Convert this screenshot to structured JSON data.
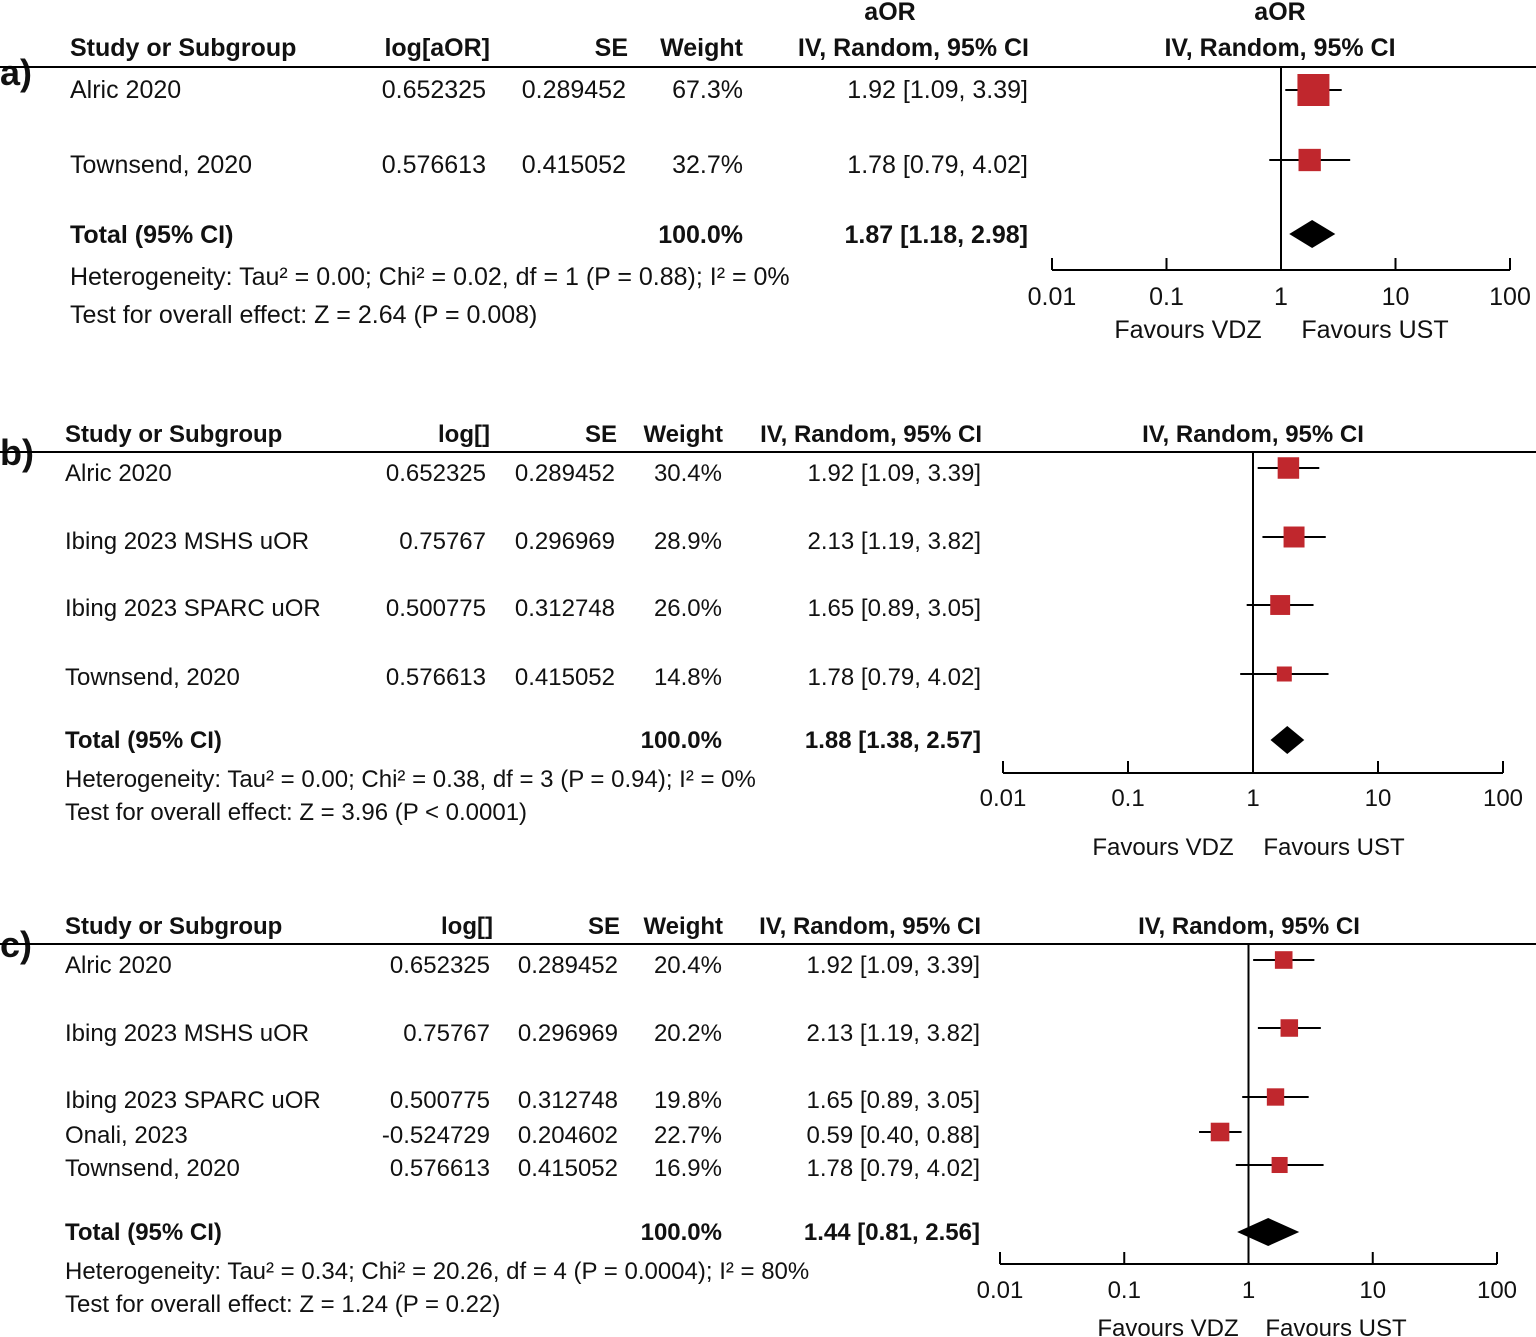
{
  "colors": {
    "marker": "#c0272d",
    "diamond": "#000000",
    "line": "#000000"
  },
  "panels": [
    {
      "label": "a)",
      "headers": {
        "study": "Study or Subgroup",
        "log": "log[aOR]",
        "se": "SE",
        "weight": "Weight",
        "ci_top": "aOR",
        "ci": "IV, Random, 95% CI",
        "plot_top": "aOR",
        "plot": "IV, Random, 95% CI"
      },
      "rows": [
        {
          "study": "Alric 2020",
          "log": "0.652325",
          "se": "0.289452",
          "weight": "67.3%",
          "ci": "1.92 [1.09, 3.39]"
        },
        {
          "study": "Townsend, 2020",
          "log": "0.576613",
          "se": "0.415052",
          "weight": "32.7%",
          "ci": "1.78 [0.79, 4.02]"
        }
      ],
      "total": {
        "label": "Total (95% CI)",
        "weight": "100.0%",
        "ci": "1.87 [1.18, 2.98]"
      },
      "heterogeneity": "Heterogeneity: Tau² = 0.00; Chi² = 0.02, df = 1 (P = 0.88); I² = 0%",
      "overall": "Test for overall effect: Z = 2.64 (P = 0.008)",
      "axis": {
        "ticks": [
          "0.01",
          "0.1",
          "1",
          "10",
          "100"
        ],
        "favours_left": "Favours VDZ",
        "favours_right": "Favours UST"
      }
    },
    {
      "label": "b)",
      "headers": {
        "study": "Study or Subgroup",
        "log": "log[]",
        "se": "SE",
        "weight": "Weight",
        "ci": "IV, Random, 95% CI",
        "plot": "IV, Random, 95% CI"
      },
      "rows": [
        {
          "study": "Alric 2020",
          "log": "0.652325",
          "se": "0.289452",
          "weight": "30.4%",
          "ci": "1.92 [1.09, 3.39]"
        },
        {
          "study": "Ibing 2023 MSHS uOR",
          "log": "0.75767",
          "se": "0.296969",
          "weight": "28.9%",
          "ci": "2.13 [1.19, 3.82]"
        },
        {
          "study": "Ibing 2023 SPARC uOR",
          "log": "0.500775",
          "se": "0.312748",
          "weight": "26.0%",
          "ci": "1.65 [0.89, 3.05]"
        },
        {
          "study": "Townsend, 2020",
          "log": "0.576613",
          "se": "0.415052",
          "weight": "14.8%",
          "ci": "1.78 [0.79, 4.02]"
        }
      ],
      "total": {
        "label": "Total (95% CI)",
        "weight": "100.0%",
        "ci": "1.88 [1.38, 2.57]"
      },
      "heterogeneity": "Heterogeneity: Tau² = 0.00; Chi² = 0.38, df = 3 (P = 0.94); I² = 0%",
      "overall": "Test for overall effect: Z = 3.96 (P < 0.0001)",
      "axis": {
        "ticks": [
          "0.01",
          "0.1",
          "1",
          "10",
          "100"
        ],
        "favours_left": "Favours VDZ",
        "favours_right": "Favours UST"
      }
    },
    {
      "label": "c)",
      "headers": {
        "study": "Study or Subgroup",
        "log": "log[]",
        "se": "SE",
        "weight": "Weight",
        "ci": "IV, Random, 95% CI",
        "plot": "IV, Random, 95% CI"
      },
      "rows": [
        {
          "study": "Alric 2020",
          "log": "0.652325",
          "se": "0.289452",
          "weight": "20.4%",
          "ci": "1.92 [1.09, 3.39]"
        },
        {
          "study": "Ibing 2023 MSHS uOR",
          "log": "0.75767",
          "se": "0.296969",
          "weight": "20.2%",
          "ci": "2.13 [1.19, 3.82]"
        },
        {
          "study": "Ibing 2023 SPARC uOR",
          "log": "0.500775",
          "se": "0.312748",
          "weight": "19.8%",
          "ci": "1.65 [0.89, 3.05]"
        },
        {
          "study": "Onali, 2023",
          "log": "-0.524729",
          "se": "0.204602",
          "weight": "22.7%",
          "ci": "0.59 [0.40, 0.88]"
        },
        {
          "study": "Townsend, 2020",
          "log": "0.576613",
          "se": "0.415052",
          "weight": "16.9%",
          "ci": "1.78 [0.79, 4.02]"
        }
      ],
      "total": {
        "label": "Total (95% CI)",
        "weight": "100.0%",
        "ci": "1.44 [0.81, 2.56]"
      },
      "heterogeneity": "Heterogeneity: Tau² = 0.34; Chi² = 20.26, df = 4 (P = 0.0004); I² = 80%",
      "overall": "Test for overall effect: Z = 1.24 (P = 0.22)",
      "axis": {
        "ticks": [
          "0.01",
          "0.1",
          "1",
          "10",
          "100"
        ],
        "favours_left": "Favours VDZ",
        "favours_right": "Favours UST"
      }
    }
  ],
  "chart_data": [
    {
      "type": "forest",
      "scale": "log",
      "xlim": [
        0.01,
        100
      ],
      "null_value": 1,
      "studies": [
        {
          "name": "Alric 2020",
          "or": 1.92,
          "lo": 1.09,
          "hi": 3.39,
          "weight": 67.3
        },
        {
          "name": "Townsend, 2020",
          "or": 1.78,
          "lo": 0.79,
          "hi": 4.02,
          "weight": 32.7
        }
      ],
      "pooled": {
        "or": 1.87,
        "lo": 1.18,
        "hi": 2.98
      }
    },
    {
      "type": "forest",
      "scale": "log",
      "xlim": [
        0.01,
        100
      ],
      "null_value": 1,
      "studies": [
        {
          "name": "Alric 2020",
          "or": 1.92,
          "lo": 1.09,
          "hi": 3.39,
          "weight": 30.4
        },
        {
          "name": "Ibing 2023 MSHS uOR",
          "or": 2.13,
          "lo": 1.19,
          "hi": 3.82,
          "weight": 28.9
        },
        {
          "name": "Ibing 2023 SPARC uOR",
          "or": 1.65,
          "lo": 0.89,
          "hi": 3.05,
          "weight": 26.0
        },
        {
          "name": "Townsend, 2020",
          "or": 1.78,
          "lo": 0.79,
          "hi": 4.02,
          "weight": 14.8
        }
      ],
      "pooled": {
        "or": 1.88,
        "lo": 1.38,
        "hi": 2.57
      }
    },
    {
      "type": "forest",
      "scale": "log",
      "xlim": [
        0.01,
        100
      ],
      "null_value": 1,
      "studies": [
        {
          "name": "Alric 2020",
          "or": 1.92,
          "lo": 1.09,
          "hi": 3.39,
          "weight": 20.4
        },
        {
          "name": "Ibing 2023 MSHS uOR",
          "or": 2.13,
          "lo": 1.19,
          "hi": 3.82,
          "weight": 20.2
        },
        {
          "name": "Ibing 2023 SPARC uOR",
          "or": 1.65,
          "lo": 0.89,
          "hi": 3.05,
          "weight": 19.8
        },
        {
          "name": "Onali, 2023",
          "or": 0.59,
          "lo": 0.4,
          "hi": 0.88,
          "weight": 22.7
        },
        {
          "name": "Townsend, 2020",
          "or": 1.78,
          "lo": 0.79,
          "hi": 4.02,
          "weight": 16.9
        }
      ],
      "pooled": {
        "or": 1.44,
        "lo": 0.81,
        "hi": 2.56
      }
    }
  ]
}
